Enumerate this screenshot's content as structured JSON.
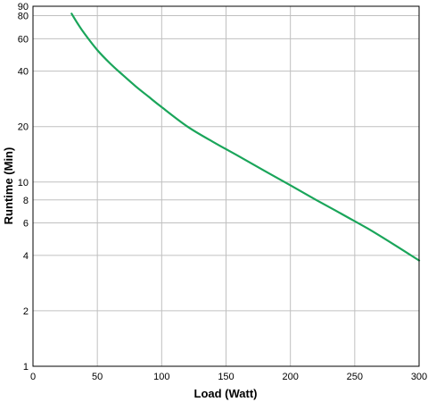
{
  "chart_data": {
    "type": "line",
    "title": "",
    "xlabel": "Load (Watt)",
    "ylabel": "Runtime (Min)",
    "xlim": [
      0,
      300
    ],
    "ylim": [
      1,
      90
    ],
    "y_scale": "log",
    "grid": true,
    "x_ticks": [
      "0",
      "50",
      "100",
      "150",
      "200",
      "250",
      "300"
    ],
    "y_ticks": [
      "1",
      "2",
      "4",
      "6",
      "8",
      "10",
      "20",
      "40",
      "60",
      "80",
      "90"
    ],
    "series": [
      {
        "color": "#1aa55a",
        "x": [
          30,
          35,
          40,
          50,
          60,
          70,
          80,
          90,
          100,
          120,
          140,
          160,
          180,
          200,
          220,
          240,
          260,
          280,
          300
        ],
        "y": [
          82,
          72,
          64,
          52,
          44,
          38,
          33,
          29,
          25.5,
          20,
          16.5,
          13.8,
          11.5,
          9.6,
          8.0,
          6.7,
          5.6,
          4.6,
          3.75
        ]
      }
    ]
  }
}
